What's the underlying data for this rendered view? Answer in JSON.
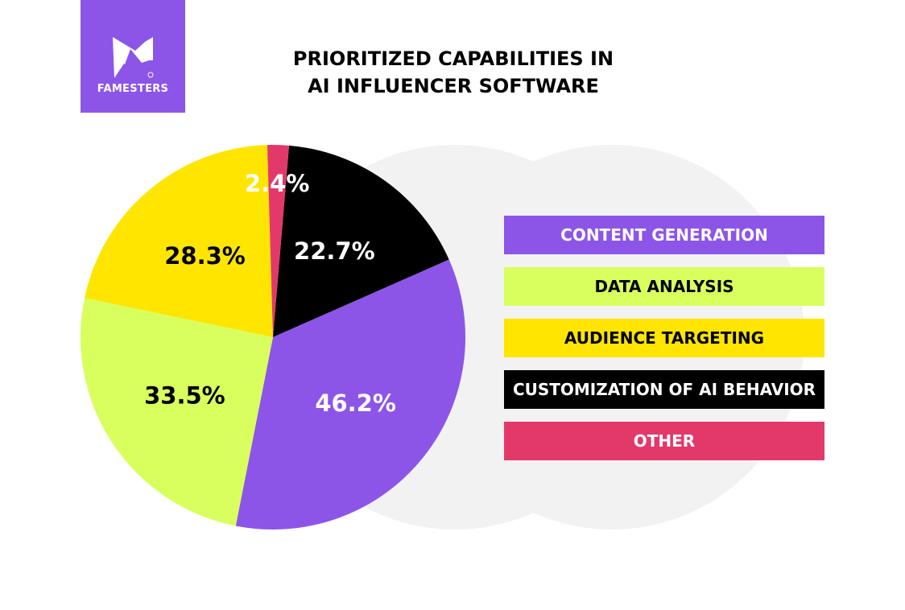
{
  "brand": {
    "name": "FAMESTERS",
    "color": "#8c55e8"
  },
  "chart_data": {
    "type": "pie",
    "title": "PRIORITIZED CAPABILITIES IN AI INFLUENCER SOFTWARE",
    "title_lines": [
      "PRIORITIZED CAPABILITIES IN",
      "AI INFLUENCER SOFTWARE"
    ],
    "legend_position": "right",
    "series": [
      {
        "name": "CONTENT GENERATION",
        "value": 46.2,
        "label": "46.2%",
        "color": "#8c55e8",
        "text_color": "#ffffff"
      },
      {
        "name": "DATA ANALYSIS",
        "value": 33.5,
        "label": "33.5%",
        "color": "#d9ff5e",
        "text_color": "#000000"
      },
      {
        "name": "AUDIENCE TARGETING",
        "value": 28.3,
        "label": "28.3%",
        "color": "#ffe500",
        "text_color": "#000000"
      },
      {
        "name": "CUSTOMIZATION OF AI BEHAVIOR",
        "value": 22.7,
        "label": "22.7%",
        "color": "#000000",
        "text_color": "#ffffff"
      },
      {
        "name": "OTHER",
        "value": 2.4,
        "label": "2.4%",
        "color": "#e3396a",
        "text_color": "#ffffff"
      }
    ]
  }
}
